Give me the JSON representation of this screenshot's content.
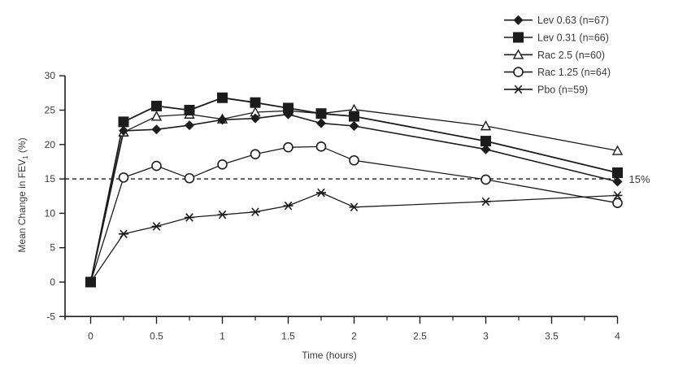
{
  "chart_data": {
    "type": "line",
    "title": "",
    "xlabel": "Time (hours)",
    "ylabel": "Mean Change in FEV",
    "ylabel_subscript": "1",
    "ylabel_suffix": " (%)",
    "xlim": [
      0,
      4
    ],
    "ylim": [
      -5,
      30
    ],
    "x_ticks": [
      0,
      0.5,
      1,
      1.5,
      2,
      2.5,
      3,
      3.5,
      4
    ],
    "x_tick_labels": [
      "0",
      "0.5",
      "1",
      "1.5",
      "2",
      "2.5",
      "3",
      "3.5",
      "4"
    ],
    "x_minor_ticks": [
      0.25,
      0.75,
      1.25,
      1.75,
      2.25,
      2.75,
      3.25,
      3.75
    ],
    "y_ticks": [
      -5,
      0,
      5,
      10,
      15,
      20,
      25,
      30
    ],
    "y_tick_labels": [
      "-5",
      "0",
      "5",
      "10",
      "15",
      "20",
      "25",
      "30"
    ],
    "grid": false,
    "legend_position": "top-right",
    "reference_line": {
      "y": 15,
      "style": "dashed",
      "label": "15%"
    },
    "x": [
      0,
      0.25,
      0.5,
      0.75,
      1,
      1.25,
      1.5,
      1.75,
      2,
      3,
      4
    ],
    "series": [
      {
        "name": "Lev 0.63 (n=67)",
        "marker": "diamond",
        "line_width": 1.6,
        "values": [
          0,
          22.0,
          22.2,
          22.8,
          23.6,
          23.8,
          24.4,
          23.1,
          22.7,
          19.3,
          14.6
        ]
      },
      {
        "name": "Lev 0.31 (n=66)",
        "marker": "square",
        "line_width": 1.8,
        "values": [
          0,
          23.3,
          25.6,
          25.0,
          26.8,
          26.1,
          25.3,
          24.5,
          24.1,
          20.5,
          15.9
        ]
      },
      {
        "name": "Rac 2.5 (n=60)",
        "marker": "triangle",
        "line_width": 1.3,
        "values": [
          0,
          21.8,
          24.1,
          24.4,
          23.7,
          24.7,
          24.9,
          24.5,
          25.1,
          22.7,
          19.1
        ]
      },
      {
        "name": "Rac 1.25 (n=64)",
        "marker": "circle",
        "line_width": 1.3,
        "values": [
          0,
          15.2,
          16.9,
          15.1,
          17.1,
          18.6,
          19.6,
          19.7,
          17.7,
          14.9,
          11.5
        ]
      },
      {
        "name": "Pbo (n=59)",
        "marker": "star",
        "line_width": 1.3,
        "values": [
          0,
          7.0,
          8.1,
          9.4,
          9.8,
          10.2,
          11.1,
          13.0,
          10.9,
          11.7,
          12.6
        ]
      }
    ]
  }
}
